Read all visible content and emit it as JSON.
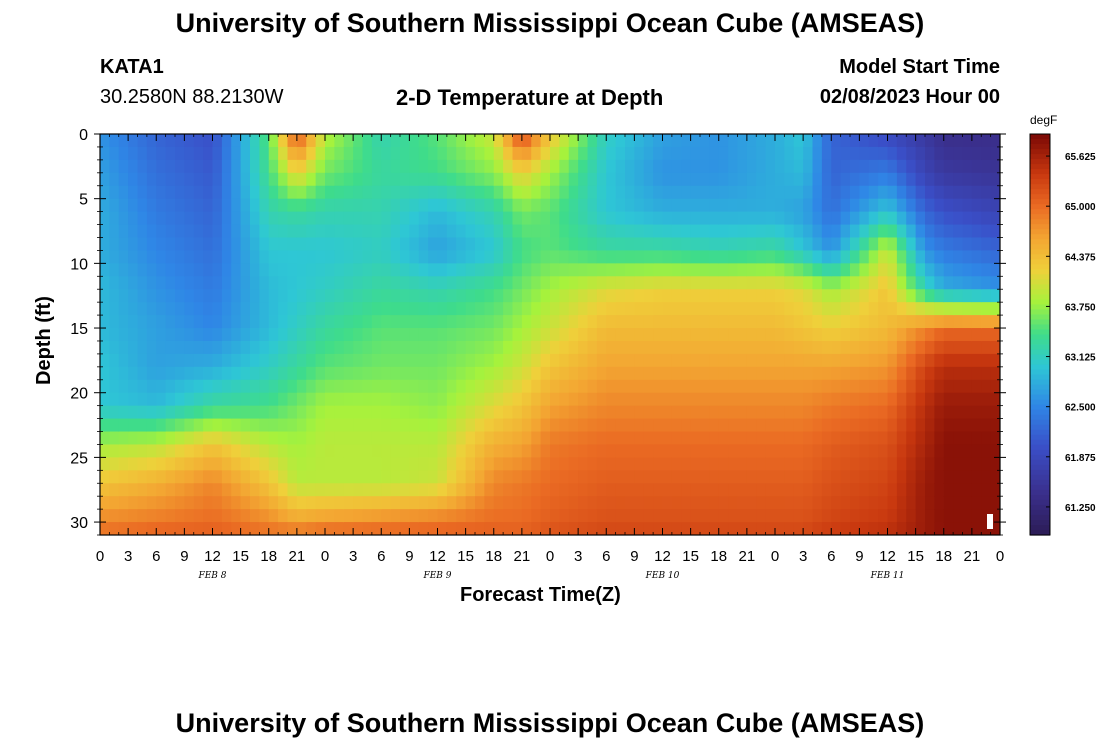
{
  "header": {
    "title": "University of Southern Mississippi Ocean Cube (AMSEAS)",
    "station": "KATA1",
    "coords": "30.2580N  88.2130W",
    "subtitle": "2-D Temperature at Depth",
    "model_start_label": "Model Start Time",
    "model_start_value": "02/08/2023 Hour 00"
  },
  "footer": {
    "title": "University of Southern Mississippi Ocean Cube (AMSEAS)"
  },
  "chart_data": {
    "type": "heatmap",
    "title": "2-D Temperature at Depth",
    "xlabel": "Forecast Time(Z)",
    "ylabel": "Depth (ft)",
    "x_ticks": [
      "0",
      "3",
      "6",
      "9",
      "12",
      "15",
      "18",
      "21",
      "0",
      "3",
      "6",
      "9",
      "12",
      "15",
      "18",
      "21",
      "0",
      "3",
      "6",
      "9",
      "12",
      "15",
      "18",
      "21",
      "0",
      "3",
      "6",
      "9",
      "12",
      "15",
      "18",
      "21",
      "0"
    ],
    "date_labels": [
      {
        "label": "FEB 8",
        "hour": 12
      },
      {
        "label": "FEB 9",
        "hour": 36
      },
      {
        "label": "FEB 10",
        "hour": 60
      },
      {
        "label": "FEB 11",
        "hour": 84
      }
    ],
    "xlim_hours": [
      0,
      96
    ],
    "y_ticks": [
      0,
      5,
      10,
      15,
      20,
      25,
      30
    ],
    "ylim_ft": [
      0,
      31
    ],
    "colorbar": {
      "unit": "degF",
      "min": 60.9,
      "max": 65.9,
      "labels": [
        "65.625",
        "65.000",
        "64.375",
        "63.750",
        "63.125",
        "62.500",
        "61.875",
        "61.250"
      ]
    },
    "control_times_hours": [
      0,
      6,
      12,
      18,
      21,
      24,
      30,
      36,
      42,
      45,
      48,
      54,
      60,
      66,
      72,
      75,
      78,
      84,
      88,
      90,
      96
    ],
    "control_depths_ft": [
      0,
      3,
      6,
      9,
      12,
      15,
      18,
      21,
      24,
      27,
      30,
      31
    ],
    "temperature_grid_degF": [
      [
        62.6,
        62.7,
        62.8,
        62.8,
        62.9,
        62.9,
        63.0,
        63.0,
        63.8,
        64.3,
        64.8,
        65.0
      ],
      [
        62.2,
        62.3,
        62.4,
        62.5,
        62.6,
        62.7,
        62.7,
        62.9,
        63.9,
        64.5,
        64.9,
        65.1
      ],
      [
        62.0,
        62.1,
        62.2,
        62.3,
        62.4,
        62.5,
        62.8,
        63.3,
        64.3,
        64.8,
        65.0,
        65.1
      ],
      [
        63.5,
        63.4,
        63.2,
        63.0,
        62.9,
        62.9,
        63.1,
        63.4,
        63.9,
        64.3,
        64.8,
        65.0
      ],
      [
        65.2,
        64.2,
        63.3,
        63.0,
        63.0,
        63.1,
        63.3,
        63.6,
        63.8,
        63.9,
        64.6,
        65.0
      ],
      [
        63.9,
        63.6,
        63.2,
        63.0,
        63.1,
        63.3,
        63.5,
        63.8,
        63.9,
        63.9,
        64.7,
        65.1
      ],
      [
        63.2,
        63.3,
        63.2,
        63.1,
        63.3,
        63.5,
        63.6,
        63.8,
        63.9,
        63.9,
        64.8,
        65.1
      ],
      [
        63.5,
        63.4,
        62.9,
        62.7,
        63.2,
        63.5,
        63.6,
        63.7,
        63.9,
        64.0,
        64.9,
        65.1
      ],
      [
        64.0,
        63.7,
        63.2,
        63.0,
        63.4,
        63.6,
        63.8,
        64.1,
        64.5,
        64.8,
        65.0,
        65.1
      ],
      [
        65.3,
        64.2,
        63.6,
        63.4,
        63.6,
        63.8,
        64.0,
        64.3,
        64.6,
        64.9,
        65.0,
        65.1
      ],
      [
        64.3,
        63.8,
        63.5,
        63.5,
        63.8,
        64.0,
        64.3,
        64.6,
        64.9,
        65.0,
        65.1,
        65.2
      ],
      [
        63.1,
        63.0,
        63.0,
        63.3,
        64.1,
        64.4,
        64.6,
        64.8,
        65.0,
        65.1,
        65.2,
        65.3
      ],
      [
        62.7,
        62.6,
        62.8,
        63.3,
        64.2,
        64.4,
        64.6,
        64.8,
        65.0,
        65.1,
        65.2,
        65.3
      ],
      [
        62.6,
        62.6,
        62.8,
        63.2,
        64.2,
        64.4,
        64.6,
        64.8,
        65.0,
        65.1,
        65.2,
        65.3
      ],
      [
        62.8,
        62.8,
        62.8,
        63.3,
        64.2,
        64.4,
        64.6,
        64.8,
        65.0,
        65.1,
        65.2,
        65.3
      ],
      [
        63.0,
        62.9,
        62.7,
        63.0,
        64.1,
        64.3,
        64.6,
        64.8,
        65.0,
        65.1,
        65.2,
        65.3
      ],
      [
        62.2,
        62.2,
        62.3,
        62.6,
        63.8,
        64.2,
        64.6,
        64.9,
        65.1,
        65.2,
        65.3,
        65.4
      ],
      [
        61.9,
        62.4,
        63.0,
        64.0,
        64.3,
        64.4,
        64.7,
        65.0,
        65.2,
        65.3,
        65.4,
        65.5
      ],
      [
        61.6,
        61.8,
        62.2,
        62.6,
        63.2,
        64.8,
        65.3,
        65.5,
        65.6,
        65.7,
        65.7,
        65.7
      ],
      [
        61.4,
        61.6,
        62.0,
        62.4,
        62.8,
        65.0,
        65.5,
        65.7,
        65.8,
        65.8,
        65.8,
        65.8
      ],
      [
        61.4,
        61.5,
        61.8,
        62.2,
        62.6,
        65.0,
        65.5,
        65.7,
        65.8,
        65.8,
        65.8,
        65.8
      ]
    ],
    "legend_position": "right"
  }
}
